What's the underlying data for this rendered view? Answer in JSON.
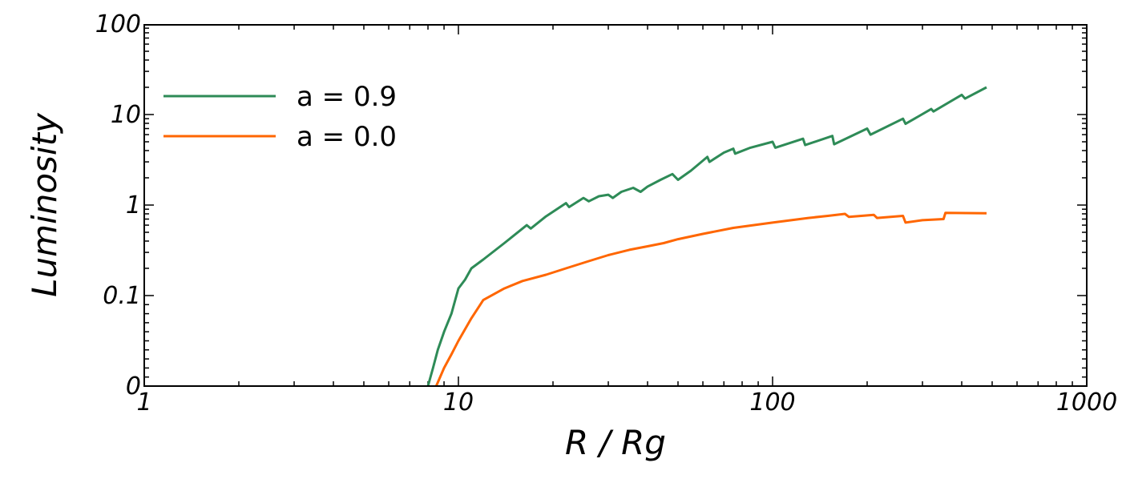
{
  "chart_data": {
    "type": "line",
    "xlabel": "R / Rg",
    "ylabel": "Luminosity",
    "x_scale": "log",
    "y_scale": "symlog",
    "xlim": [
      1,
      1000
    ],
    "ylim": [
      0,
      100
    ],
    "grid": false,
    "legend_position": "top-left",
    "x_tick_labels": [
      "1",
      "10",
      "100",
      "1000"
    ],
    "y_tick_labels": [
      "0",
      "0.1",
      "1",
      "10",
      "100"
    ],
    "series": [
      {
        "name": "a = 0.9",
        "color": "#2e8b57",
        "x": [
          8.0,
          8.3,
          8.6,
          9.0,
          9.5,
          10.0,
          10.5,
          11.0,
          12.0,
          14.0,
          16.5,
          17.0,
          19.0,
          22.0,
          22.5,
          25.0,
          26.0,
          28.0,
          30.0,
          31.0,
          33.0,
          36.0,
          38.0,
          40.0,
          44.0,
          48.0,
          50.0,
          55.0,
          62.0,
          63.0,
          70.0,
          75.0,
          76.0,
          85.0,
          100.0,
          102.0,
          125.0,
          127.0,
          155.0,
          157.0,
          200.0,
          205.0,
          260.0,
          265.0,
          320.0,
          325.0,
          400.0,
          410.0,
          480.0
        ],
        "y": [
          0.0,
          0.02,
          0.04,
          0.06,
          0.08,
          0.12,
          0.15,
          0.2,
          0.25,
          0.38,
          0.6,
          0.55,
          0.75,
          1.05,
          0.95,
          1.2,
          1.1,
          1.25,
          1.3,
          1.2,
          1.4,
          1.55,
          1.4,
          1.6,
          1.9,
          2.2,
          1.9,
          2.4,
          3.4,
          3.0,
          3.8,
          4.2,
          3.7,
          4.3,
          5.0,
          4.3,
          5.4,
          4.6,
          5.8,
          4.7,
          7.0,
          6.0,
          9.0,
          7.9,
          11.5,
          10.8,
          16.5,
          15.0,
          20.0
        ]
      },
      {
        "name": "a = 0.0",
        "color": "#ff6600",
        "x": [
          8.5,
          9.0,
          9.5,
          10.0,
          11.0,
          12.0,
          14.0,
          16.0,
          19.0,
          22.0,
          26.0,
          30.0,
          35.0,
          40.0,
          45.0,
          50.0,
          60.0,
          75.0,
          100.0,
          130.0,
          150.0,
          170.0,
          175.0,
          210.0,
          215.0,
          260.0,
          265.0,
          300.0,
          350.0,
          355.0,
          480.0
        ],
        "y": [
          0.0,
          0.02,
          0.035,
          0.05,
          0.075,
          0.095,
          0.12,
          0.145,
          0.17,
          0.2,
          0.24,
          0.28,
          0.32,
          0.35,
          0.38,
          0.42,
          0.48,
          0.56,
          0.64,
          0.72,
          0.76,
          0.8,
          0.74,
          0.78,
          0.72,
          0.76,
          0.64,
          0.68,
          0.7,
          0.82,
          0.81
        ]
      }
    ]
  }
}
